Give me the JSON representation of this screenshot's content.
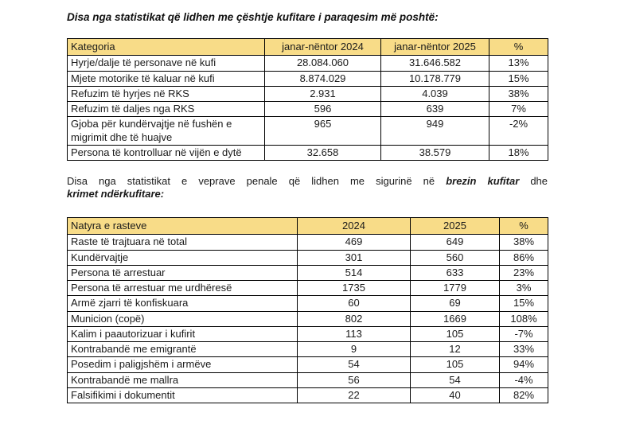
{
  "intro1": {
    "text": "Disa nga statistikat që lidhen me çështje kufitare i paraqesim më poshtë:"
  },
  "table1": {
    "headers": [
      "Kategoria",
      "janar-nëntor 2024",
      "janar-nëntor 2025",
      "%"
    ],
    "rows": [
      [
        "Hyrje/dalje të personave në kufi",
        "28.084.060",
        "31.646.582",
        "13%"
      ],
      [
        "Mjete motorike të kaluar në kufi",
        "8.874.029",
        "10.178.779",
        "15%"
      ],
      [
        "Refuzim të hyrjes në RKS",
        "2.931",
        "4.039",
        "38%"
      ],
      [
        "Refuzim të daljes nga RKS",
        "596",
        "639",
        "7%"
      ],
      [
        "Gjoba për kundërvajtje në fushën e migrimit dhe të huajve",
        "965",
        "949",
        "-2%"
      ],
      [
        "Persona të kontrolluar në vijën e dytë",
        "32.658",
        "38.579",
        "18%"
      ]
    ]
  },
  "intro2": {
    "line1_normal": "Disa nga statistikat e veprave penale që lidhen me sigurinë në ",
    "line1_bold": "brezin kufitar",
    "line1_end": " dhe",
    "line2_bold": "krimet ndërkufitare:"
  },
  "table2": {
    "headers": [
      "Natyra e rasteve",
      "2024",
      "2025",
      "%"
    ],
    "rows": [
      [
        "Raste të trajtuara në total",
        "469",
        "649",
        "38%"
      ],
      [
        "Kundërvajtje",
        "301",
        "560",
        "86%"
      ],
      [
        "Persona të arrestuar",
        "514",
        "633",
        "23%"
      ],
      [
        "Persona të arrestuar me urdhëresë",
        "1735",
        "1779",
        "3%"
      ],
      [
        "Armë zjarri të konfiskuara",
        "60",
        "69",
        "15%"
      ],
      [
        "Municion (copë)",
        "802",
        "1669",
        "108%"
      ],
      [
        "Kalim i paautorizuar i kufirit",
        "113",
        "105",
        "-7%"
      ],
      [
        "Kontrabandë me emigrantë",
        "9",
        "12",
        "33%"
      ],
      [
        "Posedim i paligjshëm i armëve",
        "54",
        "105",
        "94%"
      ],
      [
        "Kontrabandë me mallra",
        "56",
        "54",
        "-4%"
      ],
      [
        "Falsifikimi i dokumentit",
        "22",
        "40",
        "82%"
      ]
    ]
  },
  "colors": {
    "header_bg": "#F8DC88",
    "border": "#000000",
    "text": "#1a1a1a",
    "background": "#ffffff"
  }
}
